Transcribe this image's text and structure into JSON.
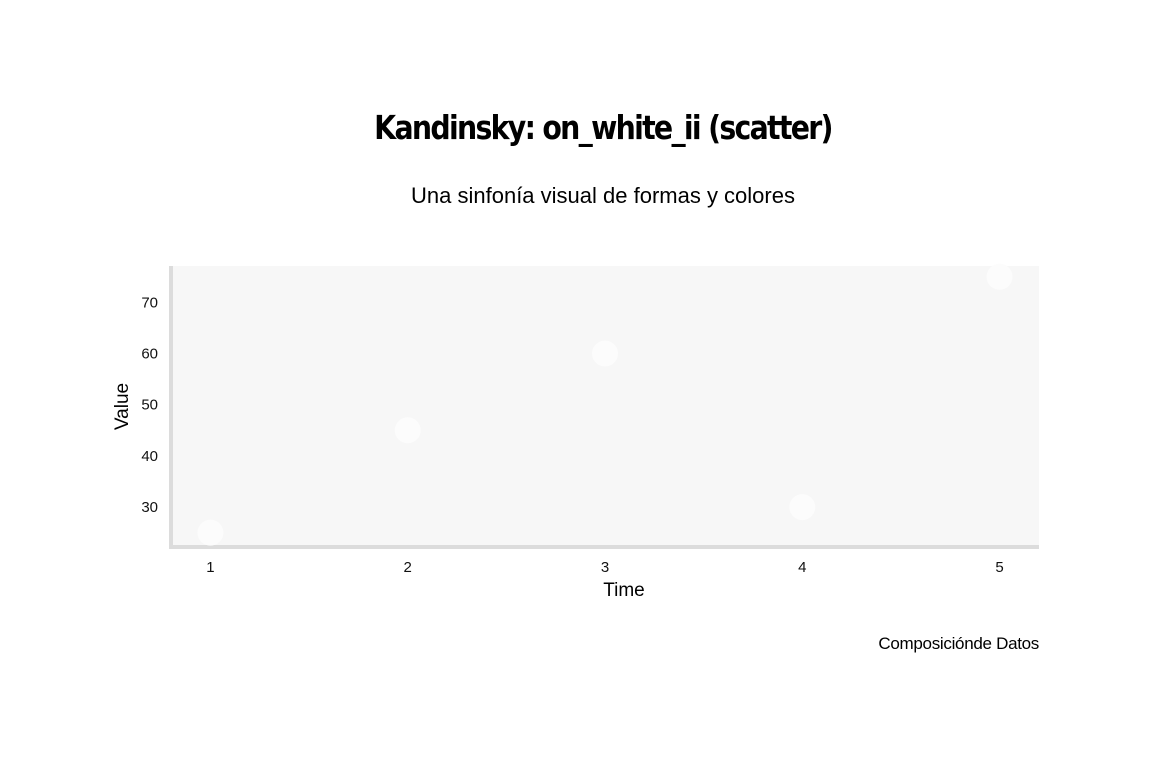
{
  "chart_data": {
    "type": "scatter",
    "title": "Kandinsky: on_white_ii (scatter)",
    "subtitle": "Una sinfonía visual de formas y colores",
    "caption": "Composicióndе Datos",
    "xlabel": "Time",
    "ylabel": "Value",
    "x_ticks": [
      1,
      2,
      3,
      4,
      5
    ],
    "y_ticks": [
      30,
      40,
      50,
      60,
      70
    ],
    "xlim": [
      0.8,
      5.2
    ],
    "ylim": [
      22.2,
      77.1
    ],
    "x": [
      1,
      2,
      3,
      4,
      5
    ],
    "y": [
      25,
      45,
      60,
      30,
      75
    ],
    "grid": false,
    "panel_background": "#f7f7f7",
    "axis_line_color": "#dcdcdc",
    "point_color": "#fcfcfc"
  }
}
